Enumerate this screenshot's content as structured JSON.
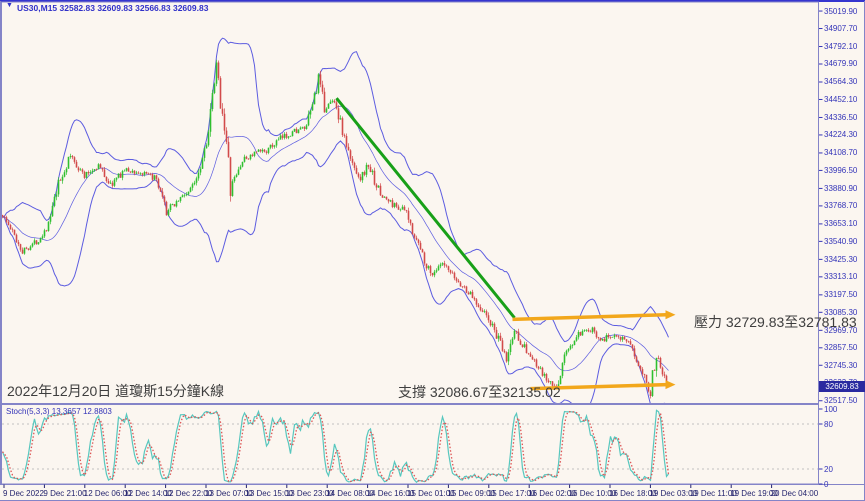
{
  "window": {
    "title": "US30,M15 32582.83 32609.83 32566.83 32609.83",
    "dropdown_icon": "▼"
  },
  "annotations": {
    "date_label": "2022年12月20日 道瓊斯15分鐘K線",
    "resistance_label": "壓力 32729.83至32781.83",
    "support_label": "支撐 32086.67至32135.02"
  },
  "price_badge": "32609.83",
  "stoch_label": "Stoch(5,3,3) 13.3657 12.8803",
  "chart_data": {
    "type": "candlestick",
    "symbol": "US30",
    "timeframe": "M15",
    "title": "US30,M15",
    "current_ohlc": {
      "open": 32582.83,
      "high": 32609.83,
      "low": 32566.83,
      "close": 32609.83
    },
    "last_close": 32609.83,
    "candle_count": 334,
    "y_range": [
      32503,
      35078
    ],
    "grid": "none in price pane; dashed 80/20 levels in stochastic pane",
    "y_tick_labels": [
      "35019.90",
      "34907.70",
      "34792.10",
      "34679.90",
      "34564.30",
      "34452.10",
      "34336.50",
      "34224.30",
      "34108.70",
      "33996.50",
      "33880.90",
      "33768.70",
      "33653.10",
      "33540.90",
      "33425.30",
      "33313.10",
      "33197.50",
      "33085.30",
      "32969.70",
      "32857.50",
      "32745.30",
      "32633.70",
      "32517.50"
    ],
    "x_tick_labels": [
      "9 Dec 2022",
      "9 Dec 21:00",
      "12 Dec 06:00",
      "12 Dec 14:00",
      "12 Dec 22:00",
      "13 Dec 07:00",
      "13 Dec 15:00",
      "13 Dec 23:00",
      "14 Dec 08:00",
      "14 Dec 16:00",
      "15 Dec 01:00",
      "15 Dec 09:00",
      "15 Dec 17:00",
      "16 Dec 02:00",
      "16 Dec 10:00",
      "16 Dec 18:00",
      "19 Dec 03:00",
      "19 Dec 11:00",
      "19 Dec 19:00",
      "20 Dec 04:00"
    ],
    "price_path_anchors": [
      [
        0,
        33710
      ],
      [
        5,
        33600
      ],
      [
        10,
        33480
      ],
      [
        18,
        33550
      ],
      [
        23,
        33650
      ],
      [
        28,
        33900
      ],
      [
        34,
        34090
      ],
      [
        41,
        33960
      ],
      [
        48,
        34030
      ],
      [
        54,
        33900
      ],
      [
        61,
        34000
      ],
      [
        68,
        33980
      ],
      [
        76,
        33950
      ],
      [
        82,
        33730
      ],
      [
        88,
        33810
      ],
      [
        94,
        33870
      ],
      [
        99,
        34030
      ],
      [
        103,
        34250
      ],
      [
        107,
        34650
      ],
      [
        109,
        34450
      ],
      [
        111,
        34290
      ],
      [
        114,
        33880
      ],
      [
        120,
        34060
      ],
      [
        127,
        34110
      ],
      [
        133,
        34130
      ],
      [
        139,
        34200
      ],
      [
        146,
        34250
      ],
      [
        152,
        34270
      ],
      [
        158,
        34580
      ],
      [
        161,
        34400
      ],
      [
        166,
        34450
      ],
      [
        171,
        34200
      ],
      [
        174,
        34060
      ],
      [
        179,
        33950
      ],
      [
        183,
        34030
      ],
      [
        189,
        33840
      ],
      [
        195,
        33780
      ],
      [
        201,
        33740
      ],
      [
        208,
        33520
      ],
      [
        214,
        33330
      ],
      [
        220,
        33390
      ],
      [
        227,
        33290
      ],
      [
        234,
        33200
      ],
      [
        240,
        33100
      ],
      [
        246,
        32970
      ],
      [
        252,
        32780
      ],
      [
        256,
        32970
      ],
      [
        260,
        32880
      ],
      [
        265,
        32780
      ],
      [
        272,
        32650
      ],
      [
        277,
        32590
      ],
      [
        281,
        32810
      ],
      [
        288,
        32940
      ],
      [
        295,
        32970
      ],
      [
        300,
        32910
      ],
      [
        307,
        32950
      ],
      [
        313,
        32880
      ],
      [
        320,
        32715
      ],
      [
        324,
        32570
      ],
      [
        327,
        32840
      ],
      [
        330,
        32715
      ],
      [
        333,
        32610
      ]
    ],
    "indicators": {
      "bollinger": {
        "period": 20,
        "deviation": 2.5
      },
      "stochastic": {
        "k": 5,
        "d": 3,
        "slowing": 3,
        "k_last": 13.3657,
        "d_last": 12.8803,
        "levels": [
          100,
          80,
          20,
          0
        ],
        "level_labels": [
          "100",
          "80",
          "20",
          "0"
        ],
        "dashed_levels": [
          80,
          20
        ]
      }
    },
    "drawings": {
      "trendline": {
        "from_candle": 167,
        "from_price": 34460,
        "to_candle": 256,
        "to_price": 33050,
        "arrow": false
      },
      "resistance_line": {
        "from_candle": 255,
        "from_price": 33040,
        "to_candle": 332,
        "to_price": 33070,
        "arrow": true,
        "label": "壓力 32729.83至32781.83",
        "zone": [
          32729.83,
          32781.83
        ]
      },
      "support_line": {
        "from_candle": 264,
        "from_price": 32595,
        "to_candle": 332,
        "to_price": 32621,
        "arrow": true,
        "label": "支撐 32086.67至32135.02",
        "zone": [
          32086.67,
          32135.02
        ]
      }
    }
  },
  "colors": {
    "background": "#FBF6F0",
    "window_border": "#3535CF",
    "frame": "#8484C8",
    "axis_text": "#3434B8",
    "time_text": "#24246E",
    "candle_up": "#2FBF2F",
    "candle_down": "#D24A4A",
    "bollinger": "#5C5CE0",
    "trendline": "#18A018",
    "sr_line": "#F2A71B",
    "stoch_k": "#57C7BE",
    "stoch_d": "#DD5555",
    "level_dash": "#C0C0C0",
    "annotation_text": "#3E3E3E",
    "badge_bg": "#2A2AA0",
    "badge_text": "#FFFFFF"
  }
}
